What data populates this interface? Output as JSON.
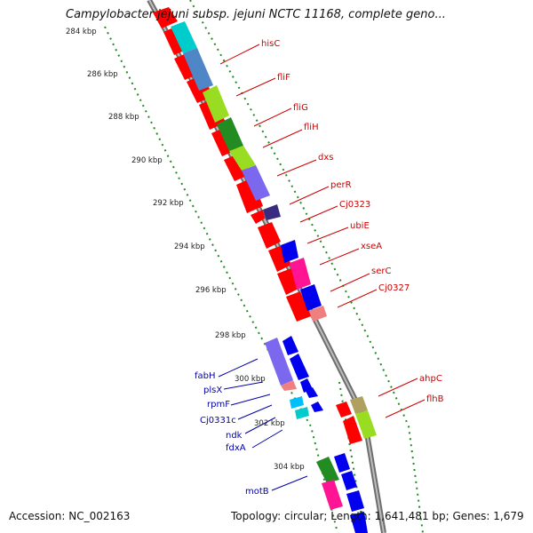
{
  "title": "Campylobacter jejuni subsp. jejuni NCTC 11168, complete geno...",
  "footer": {
    "accession": "Accession: NC_002163",
    "summary": "Topology: circular; Length: 1,641,481 bp; Genes: 1,679"
  },
  "ticks": [
    "284 kbp",
    "286 kbp",
    "288 kbp",
    "290 kbp",
    "292 kbp",
    "294 kbp",
    "296 kbp",
    "298 kbp",
    "300 kbp",
    "302 kbp",
    "304 kbp"
  ],
  "forward_gene_labels": [
    "hisC",
    "fliF",
    "fliG",
    "fliH",
    "dxs",
    "perR",
    "Cj0323",
    "ubiE",
    "xseA",
    "serC",
    "Cj0327",
    "ahpC",
    "flhB"
  ],
  "reverse_gene_labels": [
    "fabH",
    "plsX",
    "rpmF",
    "Cj0331c",
    "ndk",
    "fdxA",
    "motB"
  ],
  "colors": {
    "forward_label": "#cc0000",
    "reverse_label": "#0000aa",
    "forward_gene": "#ff0000",
    "reverse_gene": "#0000ee",
    "backbone": "#808080",
    "tick_dots": "#228b22"
  }
}
